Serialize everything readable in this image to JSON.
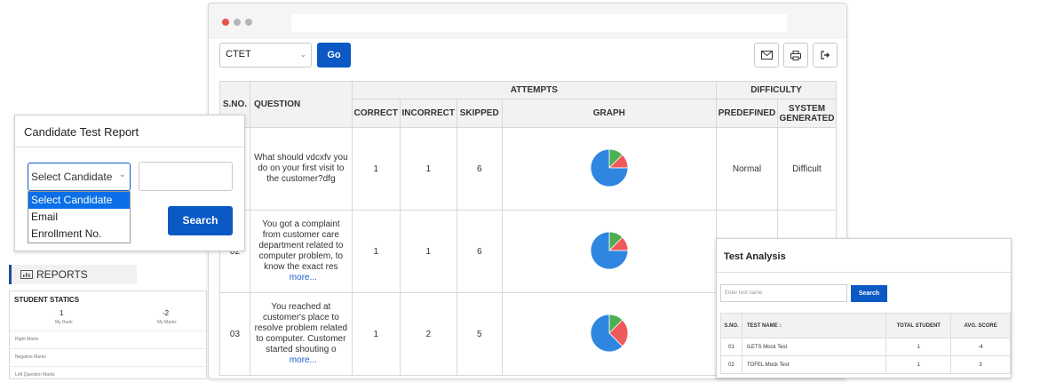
{
  "toolbar": {
    "exam_value": "CTET",
    "go_label": "Go"
  },
  "colors": {
    "accent": "#0b59c4",
    "pie_blue": "#2f86e0",
    "pie_red": "#ee5a5a",
    "pie_green": "#4caf50"
  },
  "table": {
    "headers": {
      "sno": "S.NO.",
      "question": "QUESTION",
      "attempts": "ATTEMPTS",
      "difficulty": "DIFFICULTY",
      "correct": "CORRECT",
      "incorrect": "INCORRECT",
      "skipped": "SKIPPED",
      "graph": "GRAPH",
      "predefined": "PREDEFINED",
      "system_generated": "SYSTEM GENERATED"
    },
    "rows": [
      {
        "sno": "",
        "question": "What should  vdcxfv you do on your first visit to the customer?dfg",
        "more": "",
        "correct": "1",
        "incorrect": "1",
        "skipped": "6",
        "predefined": "Normal",
        "system": "Difficult"
      },
      {
        "sno": "02",
        "question": "You got a complaint from customer care department related to computer problem, to know the exact res",
        "more": "more...",
        "correct": "1",
        "incorrect": "1",
        "skipped": "6",
        "predefined": "",
        "system": ""
      },
      {
        "sno": "03",
        "question": "You reached at customer's place to resolve problem related to computer. Customer started shouting o",
        "more": "more...",
        "correct": "1",
        "incorrect": "2",
        "skipped": "5",
        "predefined": "",
        "system": ""
      }
    ]
  },
  "candidate": {
    "title": "Candidate Test Report",
    "select_value": "Select Candidate",
    "options": [
      "Select Candidate",
      "Email",
      "Enrollment No."
    ],
    "search_label": "Search"
  },
  "reports": {
    "label": "REPORTS",
    "stats_title": "STUDENT STATICS",
    "rank_value": "1",
    "rank_label": "My Rank",
    "marks_value": "-2",
    "marks_label": "My Marks",
    "rows": [
      "Right Marks",
      "Negative Marks",
      "Left Question Marks"
    ]
  },
  "test_analysis": {
    "title": "Test Analysis",
    "placeholder": "Enter test name",
    "search_label": "Search",
    "headers": [
      "S.NO.",
      "TEST NAME ↕",
      "TOTAL STUDENT",
      "AVG. SCORE"
    ],
    "rows": [
      {
        "sno": "01",
        "name": "ILETS Mock Test",
        "total": "1",
        "avg": "-4"
      },
      {
        "sno": "02",
        "name": "TOFEL Mock Test",
        "total": "1",
        "avg": "3"
      }
    ]
  }
}
